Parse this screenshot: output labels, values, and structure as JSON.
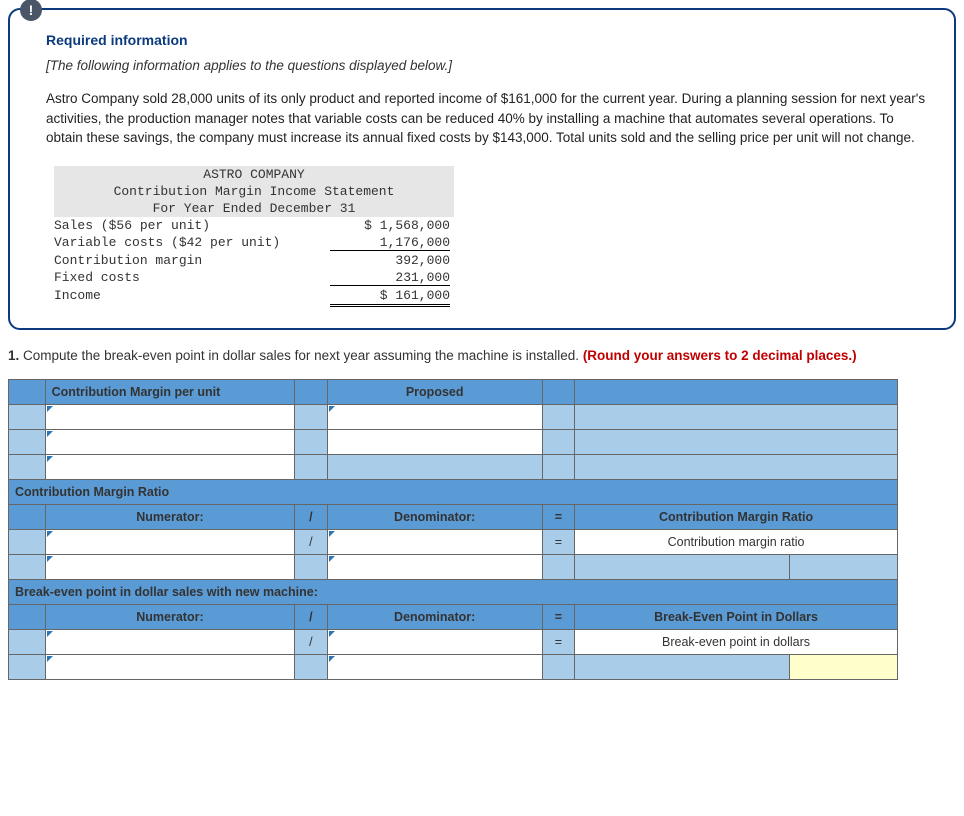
{
  "badge_char": "!",
  "info": {
    "title": "Required information",
    "note": "[The following information applies to the questions displayed below.]",
    "paragraph": "Astro Company sold 28,000 units of its only product and reported income of $161,000 for the current year. During a planning session for next year's activities, the production manager notes that variable costs can be reduced 40% by installing a machine that automates several operations. To obtain these savings, the company must increase its annual fixed costs by $143,000. Total units sold and the selling price per unit will not change."
  },
  "statement": {
    "company": "ASTRO COMPANY",
    "stmt_title": "Contribution Margin Income Statement",
    "period": "For Year Ended December 31",
    "rows": {
      "sales_label": "Sales ($56 per unit)",
      "sales_amt": "$ 1,568,000",
      "varcost_label": "Variable costs ($42 per unit)",
      "varcost_amt": "1,176,000",
      "cm_label": "Contribution margin",
      "cm_amt": "392,000",
      "fixed_label": "Fixed costs",
      "fixed_amt": "231,000",
      "income_label": "Income",
      "income_amt": "$ 161,000"
    }
  },
  "question": {
    "num": "1.",
    "text_a": " Compute the break-even point in dollar sales for next year assuming the machine is installed. ",
    "text_red": "(Round your answers to 2 decimal places.)"
  },
  "worksheet": {
    "section1_title": "Contribution Margin per unit",
    "proposed_label": "Proposed",
    "section2_title": "Contribution Margin Ratio",
    "numerator_label": "Numerator:",
    "denominator_label": "Denominator:",
    "cmr_header": "Contribution Margin Ratio",
    "cmr_result_label": "Contribution margin ratio",
    "section3_title": "Break-even point in dollar sales with new machine:",
    "bep_header": "Break-Even Point in Dollars",
    "bep_result_label": "Break-even point in dollars",
    "slash": "/",
    "equals": "="
  },
  "colors": {
    "header_blue": "#5b9bd5",
    "light_blue": "#a9cce9",
    "border": "#666666",
    "box_border": "#0b3a7e",
    "highlight": "#ffffcc"
  }
}
